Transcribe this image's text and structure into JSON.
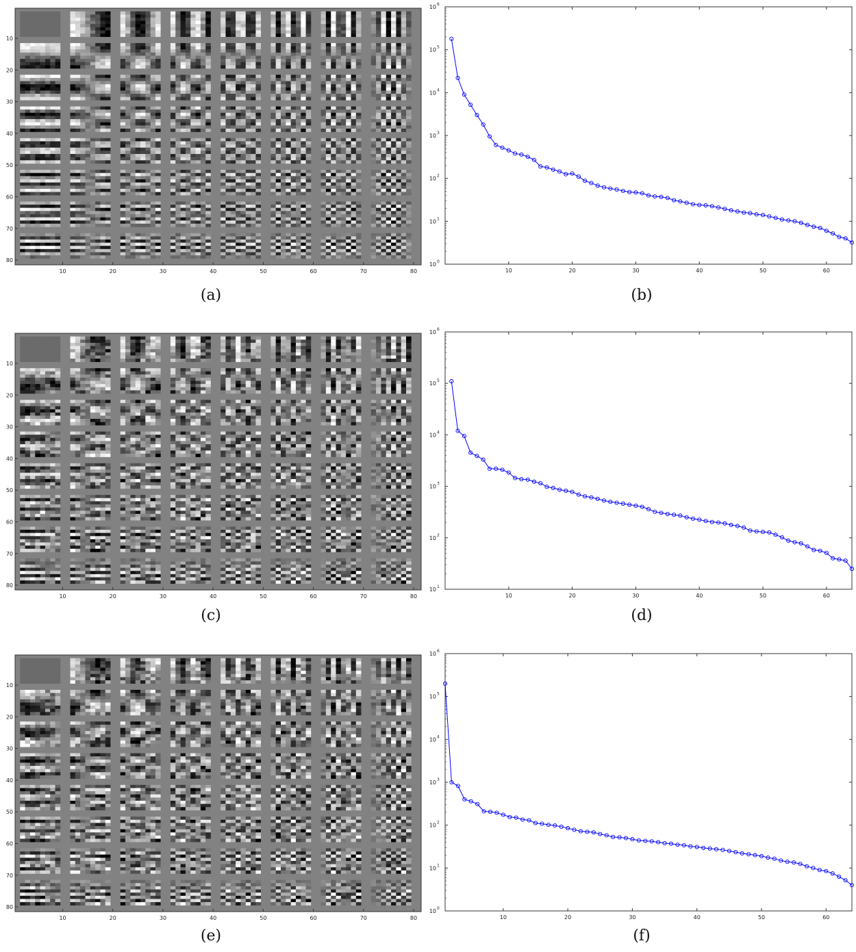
{
  "rows": [
    {
      "image_panel": {
        "caption": "(a)",
        "x_ticks": [
          "10",
          "20",
          "30",
          "40",
          "50",
          "60",
          "70",
          "80"
        ],
        "y_ticks": [
          "10",
          "20",
          "30",
          "40",
          "50",
          "60",
          "70",
          "80"
        ],
        "grid": "8x8 basis patches",
        "seed": 11
      },
      "spectrum_caption": "(b)"
    },
    {
      "image_panel": {
        "caption": "(c)",
        "x_ticks": [
          "10",
          "20",
          "30",
          "40",
          "50",
          "60",
          "70",
          "80"
        ],
        "y_ticks": [
          "10",
          "20",
          "30",
          "40",
          "50",
          "60",
          "70",
          "80"
        ],
        "grid": "8x8 basis patches",
        "seed": 23
      },
      "spectrum_caption": "(d)"
    },
    {
      "image_panel": {
        "caption": "(e)",
        "x_ticks": [
          "10",
          "20",
          "30",
          "40",
          "50",
          "60",
          "70",
          "80"
        ],
        "y_ticks": [
          "10",
          "20",
          "30",
          "40",
          "50",
          "60",
          "70",
          "80"
        ],
        "grid": "8x8 basis patches",
        "seed": 37
      },
      "spectrum_caption": "(f)"
    }
  ],
  "chart_data": [
    {
      "type": "line",
      "yscale": "log",
      "xlim": [
        0,
        64
      ],
      "ylim_exp": [
        0,
        6
      ],
      "x_ticks": [
        "10",
        "20",
        "30",
        "40",
        "50",
        "60"
      ],
      "y_tick_base": "10",
      "y_tick_exps": [
        "0",
        "1",
        "2",
        "3",
        "4",
        "5",
        "6"
      ],
      "color": "#0000ff",
      "marker": "circle",
      "x": [
        1,
        2,
        3,
        4,
        5,
        6,
        7,
        8,
        9,
        10,
        11,
        12,
        13,
        14,
        15,
        16,
        17,
        18,
        19,
        20,
        21,
        22,
        23,
        24,
        25,
        26,
        27,
        28,
        29,
        30,
        31,
        32,
        33,
        34,
        35,
        36,
        37,
        38,
        39,
        40,
        41,
        42,
        43,
        44,
        45,
        46,
        47,
        48,
        49,
        50,
        51,
        52,
        53,
        54,
        55,
        56,
        57,
        58,
        59,
        60,
        61,
        62,
        63,
        64
      ],
      "y": [
        180000,
        22000,
        9000,
        5200,
        3000,
        1800,
        950,
        600,
        520,
        450,
        380,
        360,
        320,
        270,
        190,
        180,
        160,
        145,
        125,
        130,
        110,
        88,
        78,
        68,
        62,
        58,
        55,
        51,
        48,
        47,
        45,
        40,
        38,
        37,
        35,
        31,
        29,
        27,
        25,
        24,
        23.5,
        22.5,
        21,
        19.5,
        18,
        17,
        16,
        15.5,
        14.5,
        14,
        13,
        12,
        11,
        10.5,
        10,
        9.2,
        8.2,
        7.5,
        7,
        6,
        5.2,
        4.3,
        4,
        3.2
      ]
    },
    {
      "type": "line",
      "yscale": "log",
      "xlim": [
        0,
        64
      ],
      "ylim_exp": [
        1,
        6
      ],
      "x_ticks": [
        "10",
        "20",
        "30",
        "40",
        "50",
        "60"
      ],
      "y_tick_base": "10",
      "y_tick_exps": [
        "1",
        "2",
        "3",
        "4",
        "5",
        "6"
      ],
      "color": "#0000ff",
      "marker": "circle",
      "x": [
        1,
        2,
        3,
        4,
        5,
        6,
        7,
        8,
        9,
        10,
        11,
        12,
        13,
        14,
        15,
        16,
        17,
        18,
        19,
        20,
        21,
        22,
        23,
        24,
        25,
        26,
        27,
        28,
        29,
        30,
        31,
        32,
        33,
        34,
        35,
        36,
        37,
        38,
        39,
        40,
        41,
        42,
        43,
        44,
        45,
        46,
        47,
        48,
        49,
        50,
        51,
        52,
        53,
        54,
        55,
        56,
        57,
        58,
        59,
        60,
        61,
        62,
        63,
        64
      ],
      "y": [
        110000,
        12000,
        9500,
        4500,
        3900,
        3300,
        2200,
        2200,
        2100,
        1850,
        1450,
        1380,
        1350,
        1230,
        1150,
        980,
        930,
        860,
        820,
        780,
        690,
        640,
        610,
        570,
        530,
        500,
        480,
        460,
        440,
        420,
        400,
        360,
        320,
        305,
        290,
        280,
        270,
        250,
        235,
        225,
        212,
        203,
        198,
        190,
        178,
        170,
        158,
        138,
        133,
        130,
        127,
        115,
        102,
        88,
        82,
        78,
        68,
        58,
        56,
        51,
        40,
        38,
        36,
        25
      ]
    },
    {
      "type": "line",
      "yscale": "log",
      "xlim": [
        1,
        64
      ],
      "ylim_exp": [
        0,
        6
      ],
      "x_ticks": [
        "10",
        "20",
        "30",
        "40",
        "50",
        "60"
      ],
      "y_tick_base": "10",
      "y_tick_exps": [
        "0",
        "1",
        "2",
        "3",
        "4",
        "5",
        "6"
      ],
      "color": "#0000ff",
      "marker": "circle",
      "x": [
        1,
        2,
        3,
        4,
        5,
        6,
        7,
        8,
        9,
        10,
        11,
        12,
        13,
        14,
        15,
        16,
        17,
        18,
        19,
        20,
        21,
        22,
        23,
        24,
        25,
        26,
        27,
        28,
        29,
        30,
        31,
        32,
        33,
        34,
        35,
        36,
        37,
        38,
        39,
        40,
        41,
        42,
        43,
        44,
        45,
        46,
        47,
        48,
        49,
        50,
        51,
        52,
        53,
        54,
        55,
        56,
        57,
        58,
        59,
        60,
        61,
        62,
        63,
        64
      ],
      "y": [
        200000,
        1000,
        820,
        400,
        360,
        310,
        210,
        205,
        195,
        175,
        155,
        150,
        135,
        130,
        112,
        108,
        102,
        98,
        92,
        85,
        78,
        72,
        70,
        68,
        62,
        58,
        53,
        52,
        50,
        47,
        44,
        43,
        42,
        40,
        38,
        37,
        35,
        34,
        32,
        31,
        29.5,
        28.5,
        27.5,
        26.5,
        25,
        23.5,
        22,
        21,
        20,
        19,
        17.5,
        16.5,
        15,
        14,
        13.5,
        12.5,
        11,
        10,
        9,
        8.5,
        7.5,
        6.3,
        5.2,
        4
      ]
    }
  ]
}
